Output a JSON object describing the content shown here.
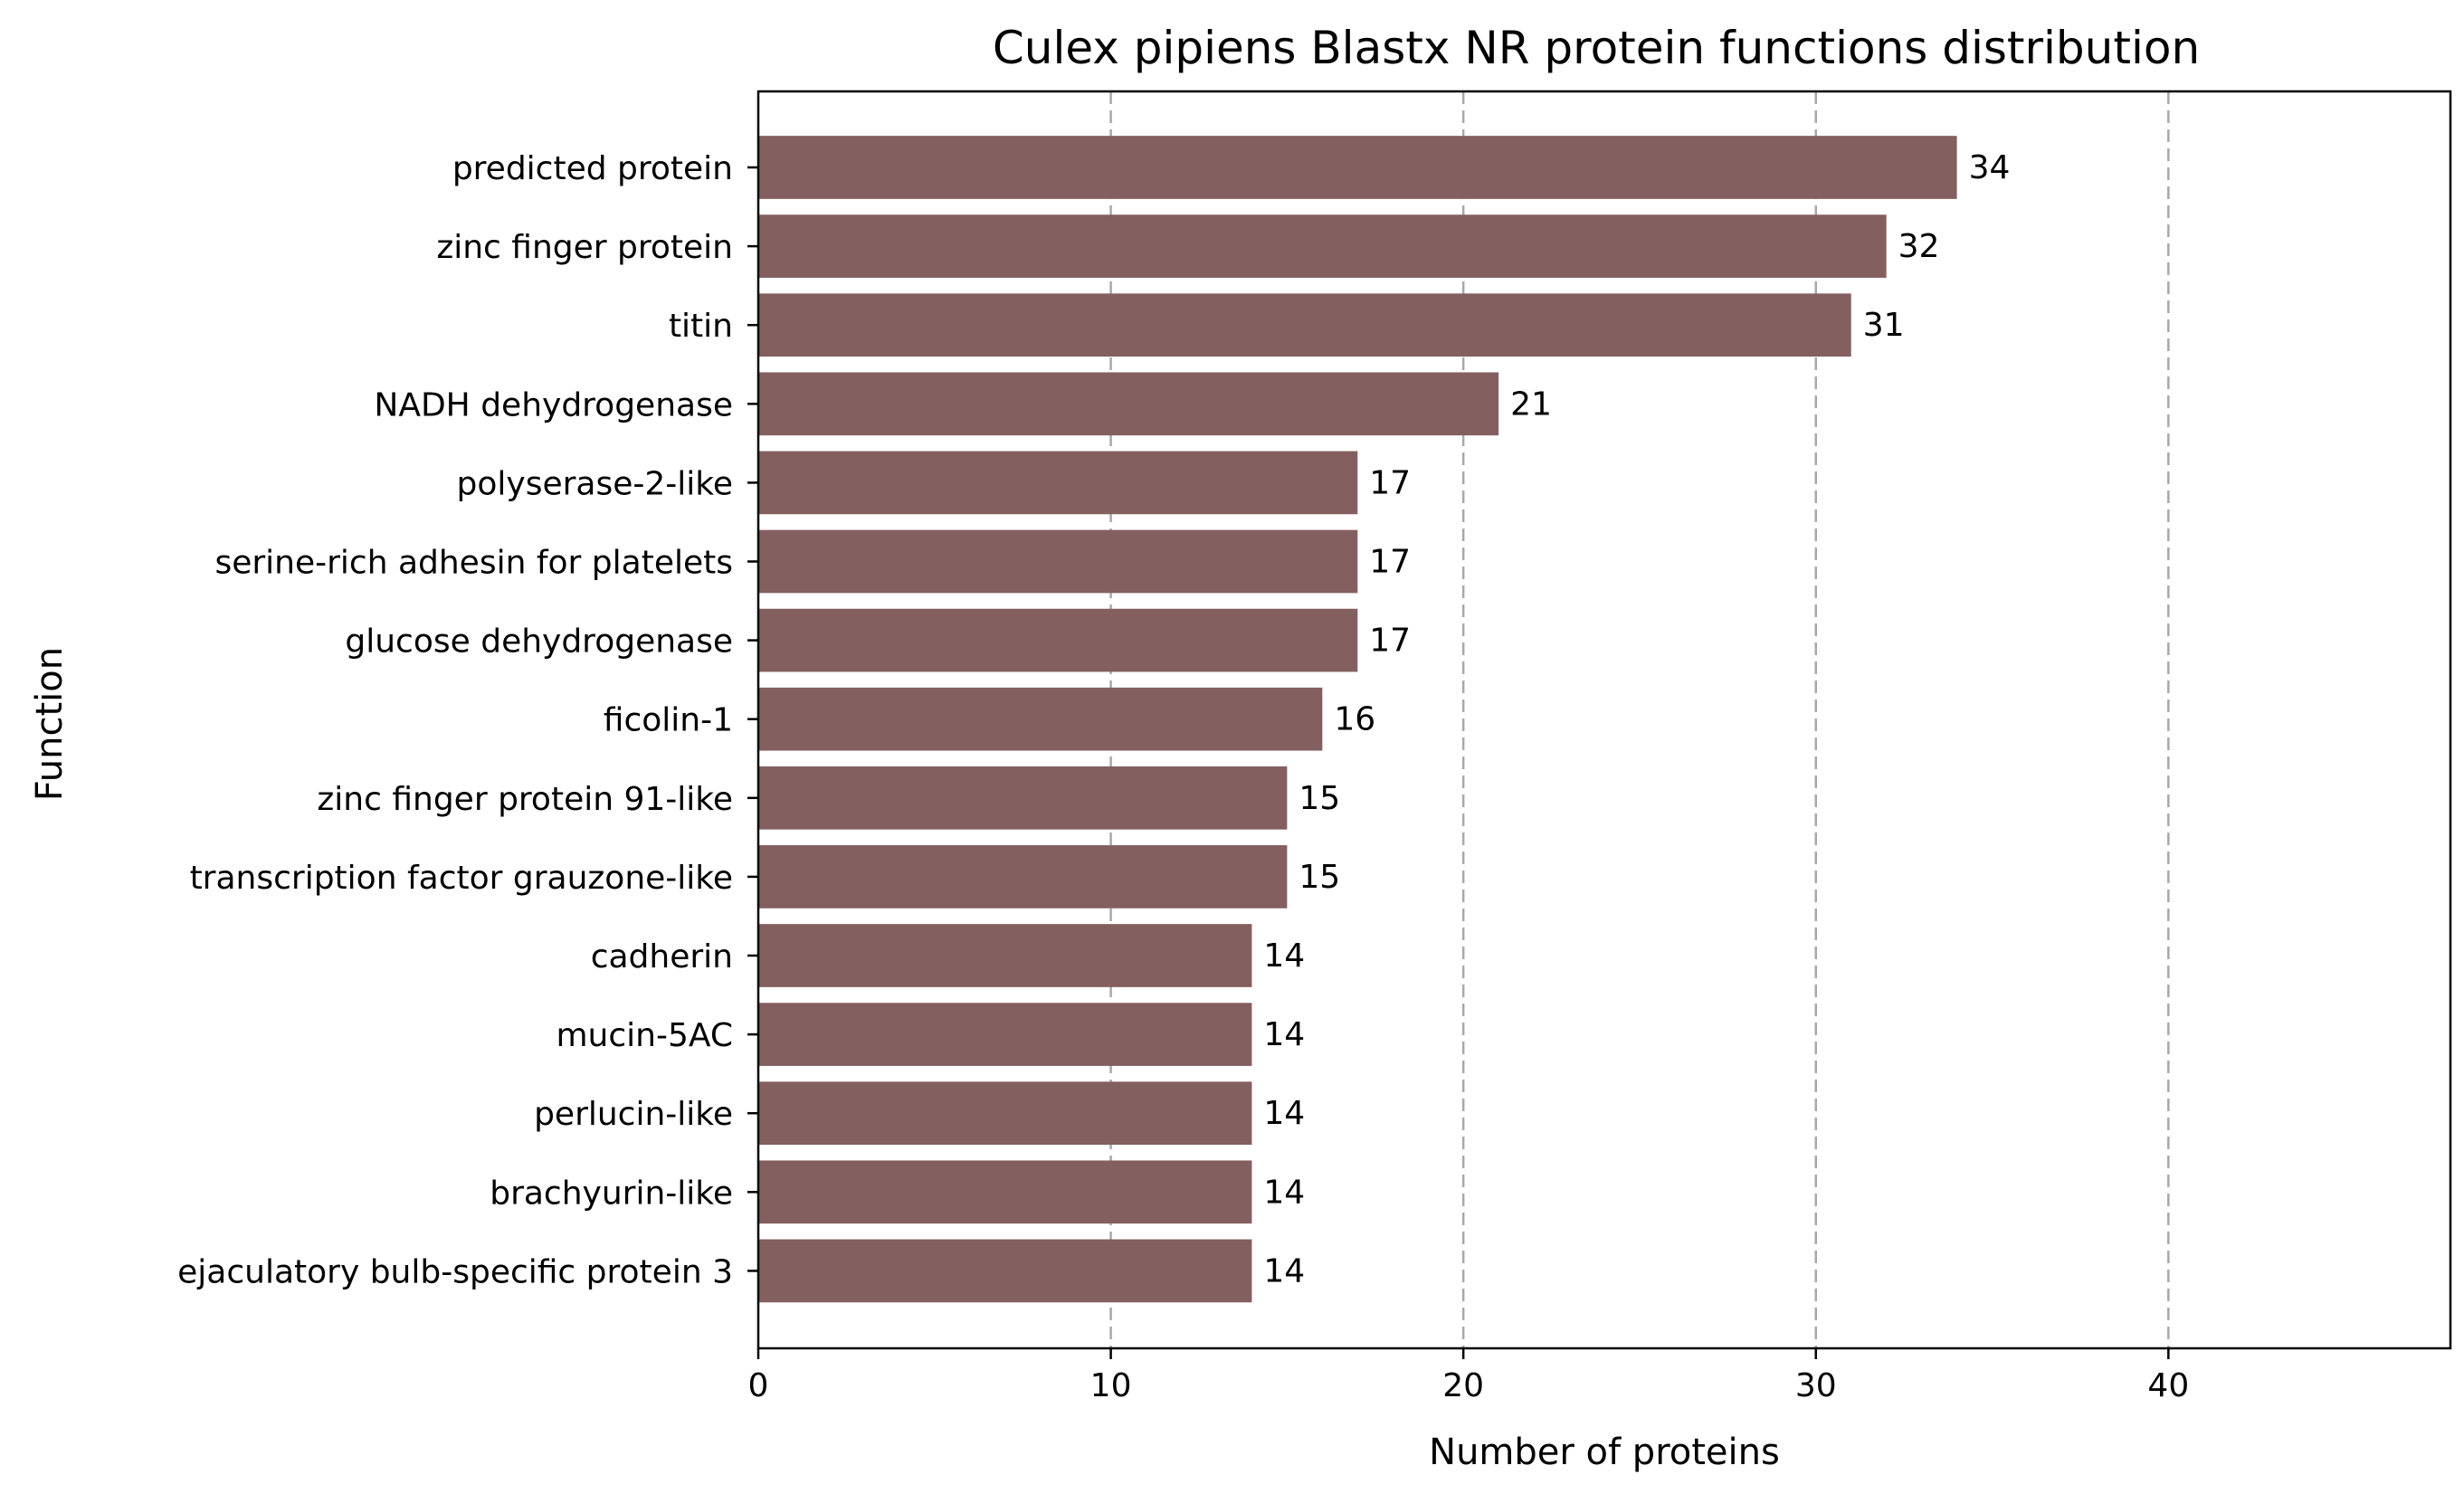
{
  "chart_data": {
    "type": "bar",
    "orientation": "horizontal",
    "title": "Culex pipiens Blastx NR protein functions distribution",
    "xlabel": "Number of proteins",
    "ylabel": "Function",
    "xlim": [
      0,
      48
    ],
    "xticks": [
      0,
      10,
      20,
      30,
      40
    ],
    "grid": "x-dashed",
    "bar_color": "#845f5f",
    "categories": [
      "predicted protein",
      "zinc finger protein",
      "titin",
      "NADH dehydrogenase",
      "polyserase-2-like",
      "serine-rich adhesin for platelets",
      "glucose dehydrogenase",
      "ficolin-1",
      "zinc finger protein 91-like",
      "transcription factor grauzone-like",
      "cadherin",
      "mucin-5AC",
      "perlucin-like",
      "brachyurin-like",
      "ejaculatory bulb-specific protein 3"
    ],
    "values": [
      34,
      32,
      31,
      21,
      17,
      17,
      17,
      16,
      15,
      15,
      14,
      14,
      14,
      14,
      14
    ]
  }
}
